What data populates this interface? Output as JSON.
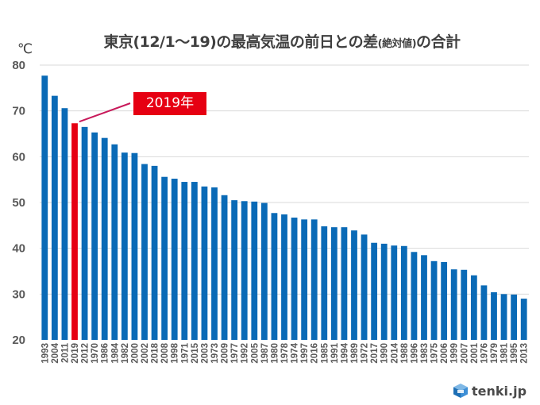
{
  "chart_data": {
    "type": "bar",
    "title_main": "東京(12/1〜19)の最高気温の前日との差",
    "title_small": "(絶対値)",
    "title_tail": "の合計",
    "title": "東京(12/1〜19)の最高気温の前日との差(絶対値)の合計",
    "ylabel": "℃",
    "xlabel": "",
    "ylim": [
      20,
      80
    ],
    "yticks": [
      20,
      30,
      40,
      50,
      60,
      70,
      80
    ],
    "grid": true,
    "legend": "none",
    "bar_color": "#0a6ab6",
    "highlight_color": "#e60012",
    "highlight_category": "2019",
    "annotation": "2019年",
    "categories": [
      "1993",
      "2004",
      "2011",
      "2019",
      "2012",
      "1970",
      "1986",
      "1984",
      "1982",
      "2000",
      "2002",
      "2018",
      "2008",
      "1998",
      "1971",
      "2015",
      "2003",
      "1973",
      "2009",
      "1977",
      "1992",
      "2005",
      "1987",
      "1980",
      "1978",
      "1974",
      "1997",
      "2016",
      "1985",
      "1991",
      "1994",
      "1989",
      "1972",
      "2017",
      "1990",
      "2014",
      "1988",
      "1996",
      "1983",
      "1975",
      "2006",
      "1999",
      "2007",
      "2001",
      "1976",
      "1979",
      "1981",
      "1995",
      "2013"
    ],
    "values": [
      77.7,
      73.3,
      70.6,
      67.3,
      66.5,
      65.3,
      64.1,
      62.7,
      60.9,
      60.8,
      58.4,
      58.0,
      55.6,
      55.2,
      54.5,
      54.5,
      53.5,
      53.3,
      51.6,
      50.5,
      50.3,
      50.2,
      49.9,
      47.7,
      47.4,
      46.7,
      46.3,
      46.3,
      44.8,
      44.6,
      44.6,
      43.9,
      43.0,
      41.2,
      41.0,
      40.6,
      40.5,
      39.2,
      38.5,
      37.2,
      37.0,
      35.4,
      35.3,
      34.1,
      31.9,
      30.4,
      30.0,
      29.9,
      29.0
    ]
  },
  "branding": {
    "logo_text": "tenki.jp",
    "logo_icon": "cube-icon"
  }
}
